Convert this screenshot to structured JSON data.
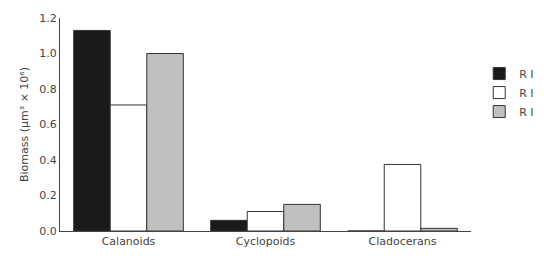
{
  "chart_data": {
    "type": "bar",
    "categories": [
      "Calanoids",
      "Cyclopoids",
      "Cladocerans"
    ],
    "series": [
      {
        "name": "R I",
        "color": "#1a1a1a",
        "values": [
          1.13,
          0.06,
          0.0
        ]
      },
      {
        "name": "R I",
        "color": "#ffffff",
        "values": [
          0.71,
          0.11,
          0.375
        ]
      },
      {
        "name": "R I",
        "color": "#c0c0c0",
        "values": [
          1.0,
          0.15,
          0.015
        ]
      }
    ],
    "ylabel": "Biomass (μm³ × 10⁶)",
    "ylim": [
      0,
      1.2
    ],
    "yticks": [
      {
        "value": 0,
        "label": "0.0"
      },
      0.2,
      0.4,
      0.6,
      0.8,
      {
        "value": 1,
        "label": "1.0"
      },
      1.2
    ],
    "grid": false,
    "legend": "right"
  }
}
